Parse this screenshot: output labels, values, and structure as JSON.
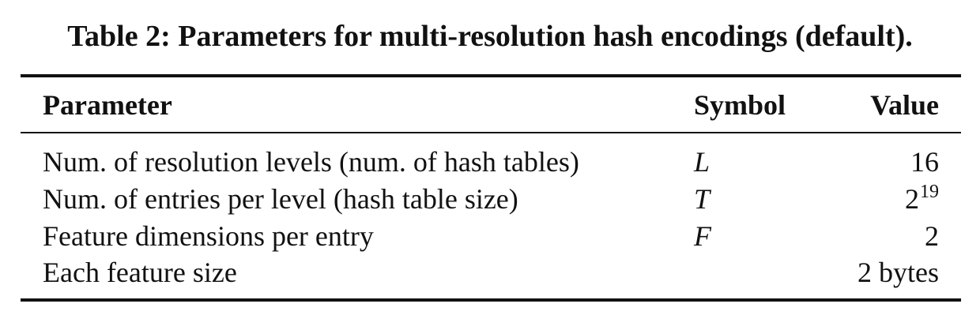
{
  "table": {
    "caption": "Table 2: Parameters for multi-resolution hash encodings (default).",
    "headers": {
      "parameter": "Parameter",
      "symbol": "Symbol",
      "value": "Value"
    },
    "rows": [
      {
        "parameter": "Num. of resolution levels (num. of hash tables)",
        "symbol": "L",
        "value": "16"
      },
      {
        "parameter": "Num. of entries per level (hash table size)",
        "symbol": "T",
        "value_base": "2",
        "value_exponent": "19"
      },
      {
        "parameter": "Feature dimensions per entry",
        "symbol": "F",
        "value": "2"
      },
      {
        "parameter": "Each feature size",
        "symbol": "",
        "value": "2 bytes"
      }
    ]
  }
}
